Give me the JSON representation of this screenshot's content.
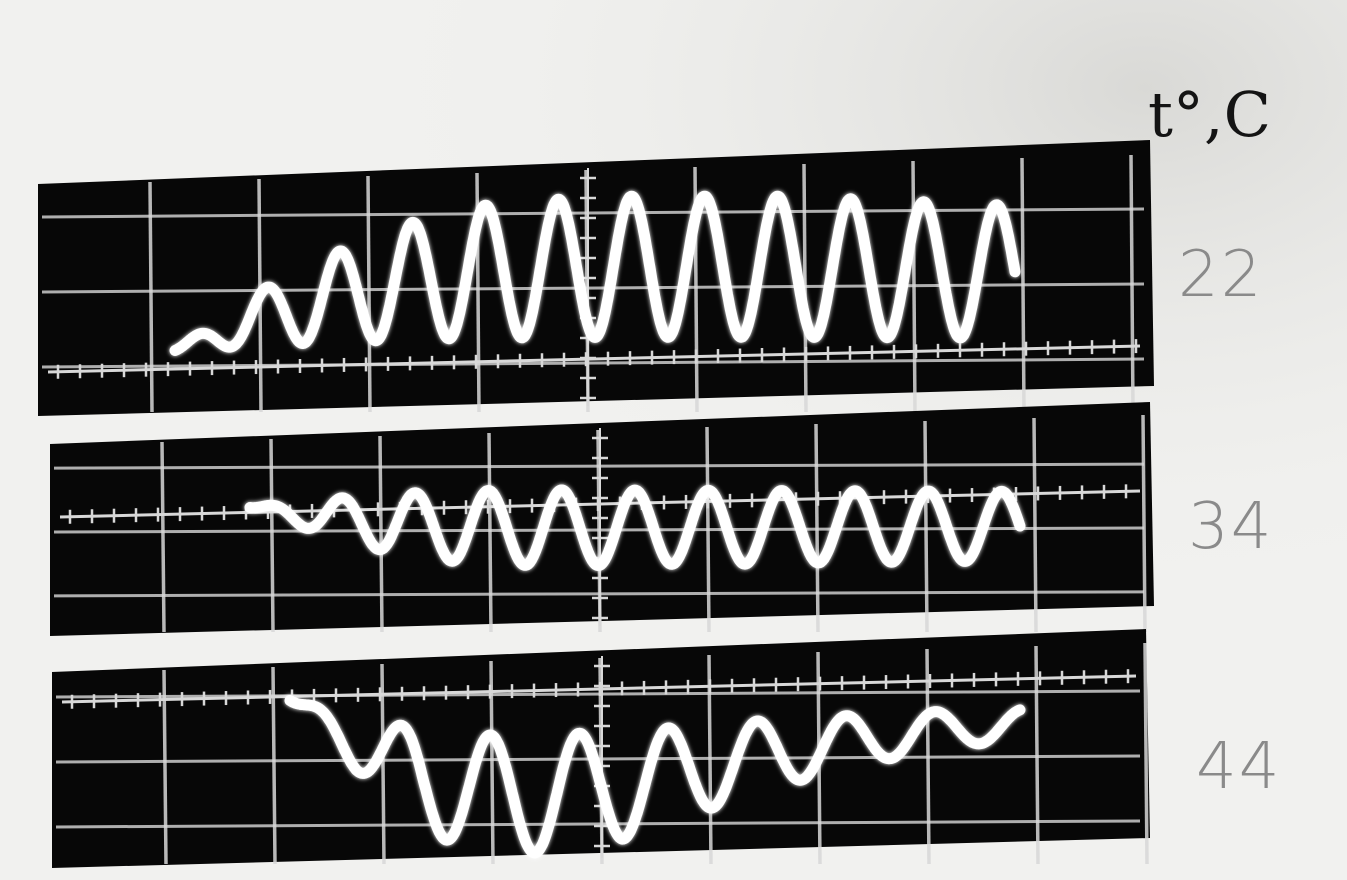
{
  "unit_label": "t°,C",
  "traces": [
    {
      "temperature": "22",
      "envelope": [
        0.0,
        0.35,
        0.6,
        0.8,
        0.92,
        0.96,
        0.98,
        0.98,
        0.98,
        0.96,
        0.94,
        0.92
      ]
    },
    {
      "temperature": "34",
      "envelope": [
        0.0,
        0.4,
        0.7,
        0.85,
        0.9,
        0.9,
        0.88,
        0.88,
        0.86,
        0.85,
        0.84,
        0.82
      ]
    },
    {
      "temperature": "44",
      "envelope": [
        0.0,
        0.45,
        0.85,
        1.0,
        0.98,
        0.9,
        0.75,
        0.6,
        0.48,
        0.38,
        0.3,
        0.25
      ]
    }
  ],
  "colors": {
    "screen": "#070707",
    "grid": "#d8d8d8",
    "trace": "#ffffff",
    "paper": "#f1f1ef"
  }
}
